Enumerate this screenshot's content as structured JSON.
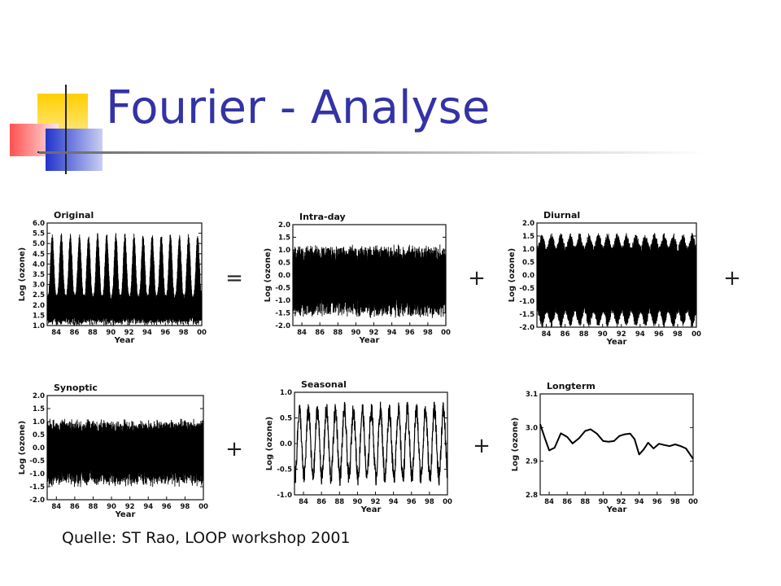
{
  "slide": {
    "title": "Fourier - Analyse",
    "source": "Quelle: ST Rao, LOOP workshop 2001"
  },
  "colors": {
    "title": "#3333a6",
    "decoration_yellow": "#ffd800",
    "decoration_red": "#ff3c3c",
    "decoration_blue": "#2a3fc8"
  },
  "operators": [
    "=",
    "+",
    "+",
    "+",
    "+"
  ],
  "chart_data": [
    {
      "type": "line",
      "title": "Original",
      "xlabel": "Year",
      "ylabel": "Log (ozone)",
      "xticks": [
        "84",
        "86",
        "88",
        "90",
        "92",
        "94",
        "96",
        "98",
        "00"
      ],
      "yticks": [
        "1.0",
        "1.5",
        "2.0",
        "2.5",
        "3.0",
        "3.5",
        "4.0",
        "4.5",
        "5.0",
        "5.5",
        "6.0"
      ],
      "ylim": [
        1.0,
        6.0
      ],
      "x": [
        1983,
        2000
      ],
      "series": [
        {
          "kind": "dense-oscillation",
          "envelope_low": [
            1.1,
            1.4
          ],
          "envelope_high": [
            4.6,
            5.4
          ],
          "cycles_per_year": 1
        }
      ]
    },
    {
      "type": "line",
      "title": "Intra-day",
      "xlabel": "Year",
      "ylabel": "Log (ozone)",
      "xticks": [
        "84",
        "86",
        "88",
        "90",
        "92",
        "94",
        "96",
        "98",
        "00"
      ],
      "yticks": [
        "-2.0",
        "-1.5",
        "-1.0",
        "-0.5",
        "0.0",
        "0.5",
        "1.0",
        "1.5",
        "2.0"
      ],
      "ylim": [
        -2.0,
        2.0
      ],
      "x": [
        1983,
        2000
      ],
      "series": [
        {
          "kind": "dense-noise",
          "envelope_low": [
            -1.6,
            -1.0
          ],
          "envelope_high": [
            0.6,
            1.1
          ]
        }
      ]
    },
    {
      "type": "line",
      "title": "Diurnal",
      "xlabel": "Year",
      "ylabel": "Log (ozone)",
      "xticks": [
        "84",
        "86",
        "88",
        "90",
        "92",
        "94",
        "96",
        "98",
        "00"
      ],
      "yticks": [
        "-2.0",
        "-1.5",
        "-1.0",
        "-0.5",
        "0.0",
        "0.5",
        "1.0",
        "1.5",
        "2.0"
      ],
      "ylim": [
        -2.0,
        2.0
      ],
      "x": [
        1983,
        2000
      ],
      "series": [
        {
          "kind": "dense-oscillation",
          "envelope_low": [
            -1.9,
            -1.1
          ],
          "envelope_high": [
            1.0,
            1.5
          ],
          "cycles_per_year": 1
        }
      ]
    },
    {
      "type": "line",
      "title": "Synoptic",
      "xlabel": "Year",
      "ylabel": "Log (ozone)",
      "xticks": [
        "84",
        "86",
        "88",
        "90",
        "92",
        "94",
        "96",
        "98",
        "00"
      ],
      "yticks": [
        "-2.0",
        "-1.5",
        "-1.0",
        "-0.5",
        "0.0",
        "0.5",
        "1.0",
        "1.5",
        "2.0"
      ],
      "ylim": [
        -2.0,
        2.0
      ],
      "x": [
        1983,
        2000
      ],
      "series": [
        {
          "kind": "dense-noise",
          "envelope_low": [
            -1.4,
            -0.9
          ],
          "envelope_high": [
            0.6,
            1.0
          ]
        }
      ]
    },
    {
      "type": "line",
      "title": "Seasonal",
      "xlabel": "Year",
      "ylabel": "Log (ozone)",
      "xticks": [
        "84",
        "86",
        "88",
        "90",
        "92",
        "94",
        "96",
        "98",
        "00"
      ],
      "yticks": [
        "-1.0",
        "-0.5",
        "0.0",
        "0.5",
        "1.0"
      ],
      "ylim": [
        -1.0,
        1.0
      ],
      "x": [
        1983,
        2000
      ],
      "series": [
        {
          "kind": "annual-cycle",
          "amplitude": 0.65,
          "cycles_per_year": 1
        }
      ]
    },
    {
      "type": "line",
      "title": "Longterm",
      "xlabel": "Year",
      "ylabel": "Log (ozone)",
      "xticks": [
        "84",
        "86",
        "88",
        "90",
        "92",
        "94",
        "96",
        "98",
        "00"
      ],
      "yticks": [
        "2.8",
        "2.9",
        "3.0",
        "3.1"
      ],
      "ylim": [
        2.8,
        3.1
      ],
      "x": [
        1983,
        2000
      ],
      "series": [
        {
          "x": [
            1983.0,
            1983.5,
            1984.0,
            1984.6,
            1985.3,
            1986.0,
            1986.6,
            1987.3,
            1988.0,
            1988.6,
            1989.3,
            1990.0,
            1990.6,
            1991.2,
            1991.8,
            1992.4,
            1993.0,
            1993.5,
            1994.0,
            1994.5,
            1995.0,
            1995.6,
            1996.2,
            1996.8,
            1997.4,
            1998.0,
            1998.6,
            1999.2,
            2000.0
          ],
          "y": [
            3.01,
            2.97,
            2.932,
            2.94,
            2.983,
            2.972,
            2.953,
            2.968,
            2.99,
            2.995,
            2.982,
            2.96,
            2.958,
            2.96,
            2.975,
            2.98,
            2.982,
            2.965,
            2.92,
            2.935,
            2.955,
            2.938,
            2.952,
            2.948,
            2.945,
            2.95,
            2.945,
            2.938,
            2.907
          ]
        }
      ]
    }
  ]
}
